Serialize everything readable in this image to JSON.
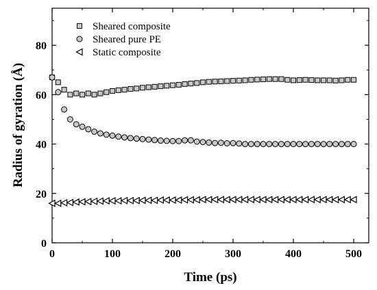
{
  "chart_data": {
    "type": "scatter",
    "xlabel": "Time (ps)",
    "ylabel": "Radius of gyration (Å)",
    "xlim": [
      0,
      525
    ],
    "ylim": [
      0,
      95
    ],
    "xticks": [
      0,
      100,
      200,
      300,
      400,
      500
    ],
    "yticks": [
      0,
      20,
      40,
      60,
      80
    ],
    "grid": false,
    "legend_position": "top-left",
    "series": [
      {
        "name": "Sheared composite",
        "marker": "square",
        "x": [
          0,
          10,
          20,
          30,
          40,
          50,
          60,
          70,
          80,
          90,
          100,
          110,
          120,
          130,
          140,
          150,
          160,
          170,
          180,
          190,
          200,
          210,
          220,
          230,
          240,
          250,
          260,
          270,
          280,
          290,
          300,
          310,
          320,
          330,
          340,
          350,
          360,
          370,
          380,
          390,
          400,
          410,
          420,
          430,
          440,
          450,
          460,
          470,
          480,
          490,
          500
        ],
        "y": [
          67,
          65,
          62,
          60,
          60.5,
          60,
          60.5,
          60,
          60.5,
          61,
          61.5,
          61.8,
          62,
          62.3,
          62.5,
          62.8,
          63,
          63.2,
          63.4,
          63.6,
          63.8,
          64,
          64.3,
          64.5,
          64.7,
          65,
          65.2,
          65.3,
          65.4,
          65.5,
          65.6,
          65.7,
          65.8,
          66,
          66.1,
          66.2,
          66.3,
          66.3,
          66.3,
          66,
          65.8,
          65.9,
          66,
          65.9,
          65.8,
          65.8,
          65.8,
          65.7,
          65.8,
          66,
          66
        ]
      },
      {
        "name": "Sheared pure PE",
        "marker": "circle",
        "x": [
          0,
          10,
          20,
          30,
          40,
          50,
          60,
          70,
          80,
          90,
          100,
          110,
          120,
          130,
          140,
          150,
          160,
          170,
          180,
          190,
          200,
          210,
          220,
          230,
          240,
          250,
          260,
          270,
          280,
          290,
          300,
          310,
          320,
          330,
          340,
          350,
          360,
          370,
          380,
          390,
          400,
          410,
          420,
          430,
          440,
          450,
          460,
          470,
          480,
          490,
          500
        ],
        "y": [
          67,
          61,
          54,
          50,
          48,
          47,
          46,
          45,
          44.3,
          43.8,
          43.4,
          43,
          42.7,
          42.4,
          42.2,
          42,
          41.8,
          41.6,
          41.4,
          41.3,
          41.2,
          41.2,
          41.5,
          41.5,
          41,
          40.8,
          40.6,
          40.4,
          40.5,
          40.3,
          40.4,
          40.2,
          40,
          40,
          40,
          40,
          40,
          40,
          40,
          40,
          40,
          40,
          40,
          40,
          40,
          40,
          40,
          40,
          40,
          40,
          40
        ]
      },
      {
        "name": "Static composite",
        "marker": "triangle-left",
        "x": [
          0,
          10,
          20,
          30,
          40,
          50,
          60,
          70,
          80,
          90,
          100,
          110,
          120,
          130,
          140,
          150,
          160,
          170,
          180,
          190,
          200,
          210,
          220,
          230,
          240,
          250,
          260,
          270,
          280,
          290,
          300,
          310,
          320,
          330,
          340,
          350,
          360,
          370,
          380,
          390,
          400,
          410,
          420,
          430,
          440,
          450,
          460,
          470,
          480,
          490,
          500
        ],
        "y": [
          16,
          16,
          16.2,
          16.3,
          16.5,
          16.6,
          16.7,
          16.8,
          16.9,
          17,
          17,
          17,
          17.1,
          17.1,
          17.1,
          17.2,
          17.2,
          17.2,
          17.3,
          17.3,
          17.3,
          17.3,
          17.4,
          17.4,
          17.4,
          17.5,
          17.5,
          17.5,
          17.5,
          17.5,
          17.5,
          17.5,
          17.5,
          17.5,
          17.5,
          17.5,
          17.5,
          17.5,
          17.5,
          17.5,
          17.5,
          17.5,
          17.5,
          17.5,
          17.5,
          17.5,
          17.5,
          17.5,
          17.5,
          17.5,
          17.5
        ]
      }
    ],
    "colors": {
      "marker_fill": "#c8c8c8",
      "stroke": "#000000"
    }
  }
}
